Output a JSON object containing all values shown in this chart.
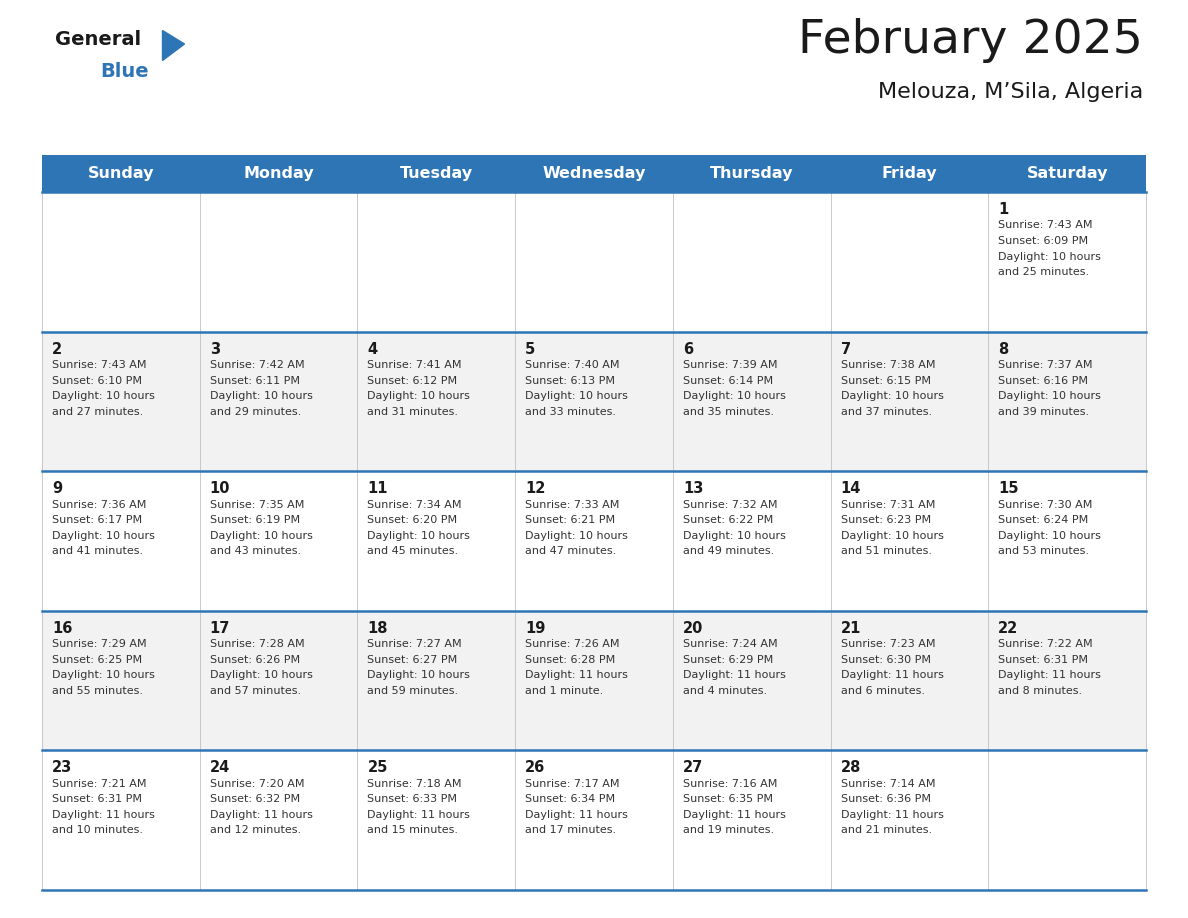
{
  "title": "February 2025",
  "subtitle": "Melouza, M’Sila, Algeria",
  "days_of_week": [
    "Sunday",
    "Monday",
    "Tuesday",
    "Wednesday",
    "Thursday",
    "Friday",
    "Saturday"
  ],
  "header_bg": "#2e75b6",
  "header_text_color": "#ffffff",
  "divider_color": "#2e75b6",
  "cell_bg_white": "#ffffff",
  "cell_bg_gray": "#f2f2f2",
  "text_color": "#333333",
  "calendar_data": [
    [
      null,
      null,
      null,
      null,
      null,
      null,
      {
        "day": 1,
        "sunrise": "7:43 AM",
        "sunset": "6:09 PM",
        "dl1": "Daylight: 10 hours",
        "dl2": "and 25 minutes."
      }
    ],
    [
      {
        "day": 2,
        "sunrise": "7:43 AM",
        "sunset": "6:10 PM",
        "dl1": "Daylight: 10 hours",
        "dl2": "and 27 minutes."
      },
      {
        "day": 3,
        "sunrise": "7:42 AM",
        "sunset": "6:11 PM",
        "dl1": "Daylight: 10 hours",
        "dl2": "and 29 minutes."
      },
      {
        "day": 4,
        "sunrise": "7:41 AM",
        "sunset": "6:12 PM",
        "dl1": "Daylight: 10 hours",
        "dl2": "and 31 minutes."
      },
      {
        "day": 5,
        "sunrise": "7:40 AM",
        "sunset": "6:13 PM",
        "dl1": "Daylight: 10 hours",
        "dl2": "and 33 minutes."
      },
      {
        "day": 6,
        "sunrise": "7:39 AM",
        "sunset": "6:14 PM",
        "dl1": "Daylight: 10 hours",
        "dl2": "and 35 minutes."
      },
      {
        "day": 7,
        "sunrise": "7:38 AM",
        "sunset": "6:15 PM",
        "dl1": "Daylight: 10 hours",
        "dl2": "and 37 minutes."
      },
      {
        "day": 8,
        "sunrise": "7:37 AM",
        "sunset": "6:16 PM",
        "dl1": "Daylight: 10 hours",
        "dl2": "and 39 minutes."
      }
    ],
    [
      {
        "day": 9,
        "sunrise": "7:36 AM",
        "sunset": "6:17 PM",
        "dl1": "Daylight: 10 hours",
        "dl2": "and 41 minutes."
      },
      {
        "day": 10,
        "sunrise": "7:35 AM",
        "sunset": "6:19 PM",
        "dl1": "Daylight: 10 hours",
        "dl2": "and 43 minutes."
      },
      {
        "day": 11,
        "sunrise": "7:34 AM",
        "sunset": "6:20 PM",
        "dl1": "Daylight: 10 hours",
        "dl2": "and 45 minutes."
      },
      {
        "day": 12,
        "sunrise": "7:33 AM",
        "sunset": "6:21 PM",
        "dl1": "Daylight: 10 hours",
        "dl2": "and 47 minutes."
      },
      {
        "day": 13,
        "sunrise": "7:32 AM",
        "sunset": "6:22 PM",
        "dl1": "Daylight: 10 hours",
        "dl2": "and 49 minutes."
      },
      {
        "day": 14,
        "sunrise": "7:31 AM",
        "sunset": "6:23 PM",
        "dl1": "Daylight: 10 hours",
        "dl2": "and 51 minutes."
      },
      {
        "day": 15,
        "sunrise": "7:30 AM",
        "sunset": "6:24 PM",
        "dl1": "Daylight: 10 hours",
        "dl2": "and 53 minutes."
      }
    ],
    [
      {
        "day": 16,
        "sunrise": "7:29 AM",
        "sunset": "6:25 PM",
        "dl1": "Daylight: 10 hours",
        "dl2": "and 55 minutes."
      },
      {
        "day": 17,
        "sunrise": "7:28 AM",
        "sunset": "6:26 PM",
        "dl1": "Daylight: 10 hours",
        "dl2": "and 57 minutes."
      },
      {
        "day": 18,
        "sunrise": "7:27 AM",
        "sunset": "6:27 PM",
        "dl1": "Daylight: 10 hours",
        "dl2": "and 59 minutes."
      },
      {
        "day": 19,
        "sunrise": "7:26 AM",
        "sunset": "6:28 PM",
        "dl1": "Daylight: 11 hours",
        "dl2": "and 1 minute."
      },
      {
        "day": 20,
        "sunrise": "7:24 AM",
        "sunset": "6:29 PM",
        "dl1": "Daylight: 11 hours",
        "dl2": "and 4 minutes."
      },
      {
        "day": 21,
        "sunrise": "7:23 AM",
        "sunset": "6:30 PM",
        "dl1": "Daylight: 11 hours",
        "dl2": "and 6 minutes."
      },
      {
        "day": 22,
        "sunrise": "7:22 AM",
        "sunset": "6:31 PM",
        "dl1": "Daylight: 11 hours",
        "dl2": "and 8 minutes."
      }
    ],
    [
      {
        "day": 23,
        "sunrise": "7:21 AM",
        "sunset": "6:31 PM",
        "dl1": "Daylight: 11 hours",
        "dl2": "and 10 minutes."
      },
      {
        "day": 24,
        "sunrise": "7:20 AM",
        "sunset": "6:32 PM",
        "dl1": "Daylight: 11 hours",
        "dl2": "and 12 minutes."
      },
      {
        "day": 25,
        "sunrise": "7:18 AM",
        "sunset": "6:33 PM",
        "dl1": "Daylight: 11 hours",
        "dl2": "and 15 minutes."
      },
      {
        "day": 26,
        "sunrise": "7:17 AM",
        "sunset": "6:34 PM",
        "dl1": "Daylight: 11 hours",
        "dl2": "and 17 minutes."
      },
      {
        "day": 27,
        "sunrise": "7:16 AM",
        "sunset": "6:35 PM",
        "dl1": "Daylight: 11 hours",
        "dl2": "and 19 minutes."
      },
      {
        "day": 28,
        "sunrise": "7:14 AM",
        "sunset": "6:36 PM",
        "dl1": "Daylight: 11 hours",
        "dl2": "and 21 minutes."
      },
      null
    ]
  ]
}
